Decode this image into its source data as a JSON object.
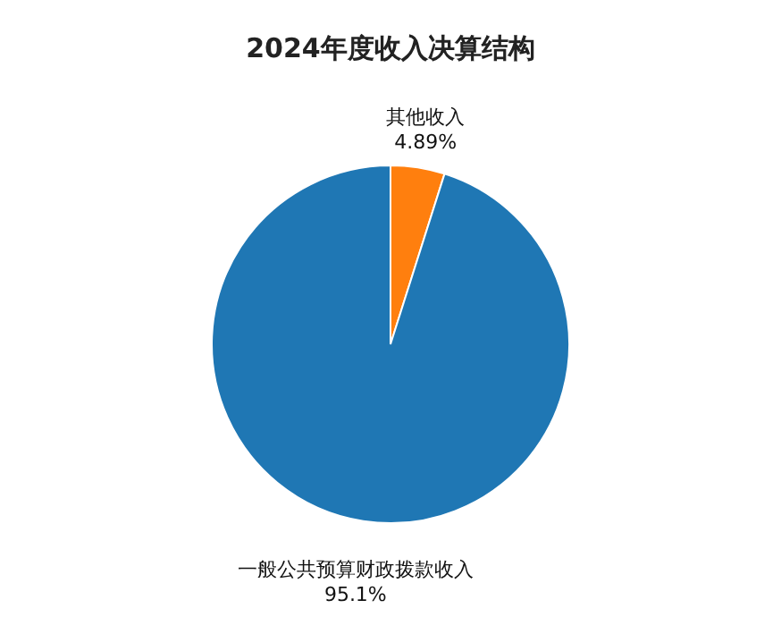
{
  "chart_data": {
    "type": "pie",
    "title": "2024年度收入决算结构",
    "categories": [
      "其他收入",
      "一般公共预算财政拨款收入"
    ],
    "values": [
      4.89,
      95.1
    ],
    "value_labels": [
      "4.89%",
      "95.1%"
    ],
    "colors": [
      "#ff7f0e",
      "#1f77b4"
    ]
  }
}
